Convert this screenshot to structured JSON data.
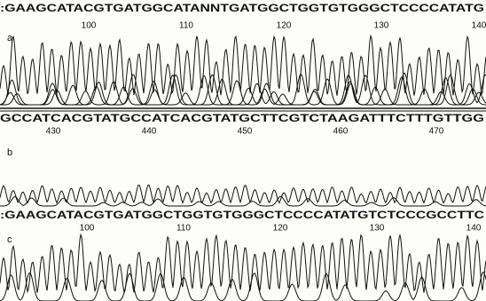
{
  "panels": [
    {
      "label": "a",
      "sequence": ":GAAGCATACGTGATGGCATANNTGATGGCTGGTGTGGGCTCCCCATATG",
      "positions": [
        100,
        110,
        120,
        130,
        140
      ]
    },
    {
      "label": "b",
      "sequence": "GCCATCACGTATGCCATCACGTATGCTTCGTCTAAGATTTCTTTGTTGG",
      "positions": [
        430,
        440,
        450,
        460,
        470
      ]
    },
    {
      "label": "c",
      "sequence": ":GAAGCATACGTGATGGCTGGTGTGGGCTCCCCATATGTCTCCCGCCTTC",
      "positions": [
        100,
        110,
        120,
        130,
        140
      ]
    }
  ]
}
